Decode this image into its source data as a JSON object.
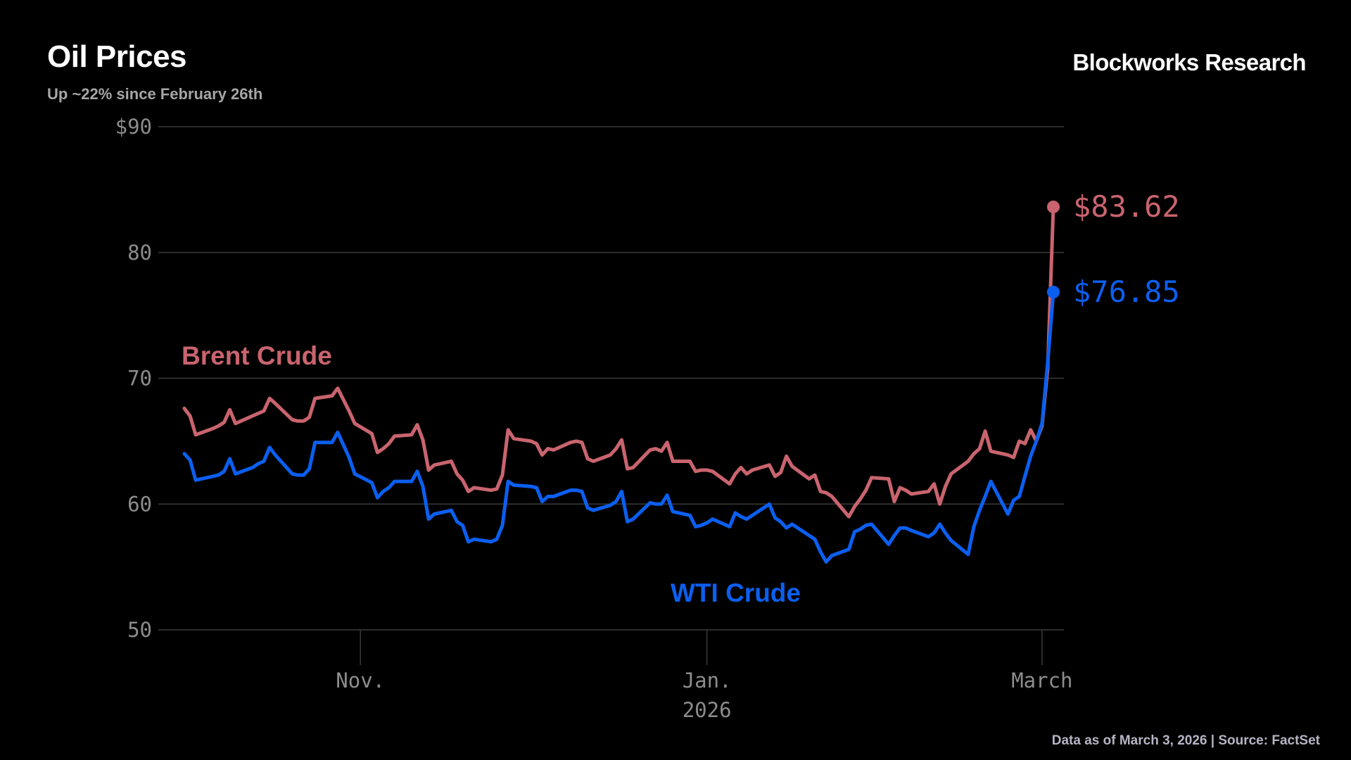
{
  "header": {
    "title": "Oil Prices",
    "subtitle": "Up ~22% since February 26th",
    "brand": "Blockworks Research"
  },
  "footer": {
    "note": "Data as of March 3, 2026 | Source:  FactSet"
  },
  "colors": {
    "background": "#000000",
    "brent": "#c9646e",
    "wti": "#0b5ff0",
    "grid": "#3a3a3a",
    "tick_text": "#8c8c8c"
  },
  "chart_data": {
    "type": "line",
    "title": "Oil Prices",
    "subtitle": "Up ~22% since February 26th",
    "ylim": [
      50,
      90
    ],
    "yticks": [
      {
        "value": 90,
        "label": "$90"
      },
      {
        "value": 80,
        "label": "80"
      },
      {
        "value": 70,
        "label": "70"
      },
      {
        "value": 60,
        "label": "60"
      },
      {
        "value": 50,
        "label": "50"
      }
    ],
    "xlim": [
      "2025-10-01",
      "2026-03-03"
    ],
    "xticks": [
      {
        "date": "2025-11-01",
        "label": "Nov."
      },
      {
        "date": "2026-01-01",
        "label": "Jan."
      },
      {
        "date": "2026-03-01",
        "label": "March"
      }
    ],
    "year_label": {
      "date": "2026-01-01",
      "label": "2026"
    },
    "grid": "horizontal",
    "series": [
      {
        "name": "Brent Crude",
        "end_label": "$83.62",
        "end_value": 83.62,
        "points": [
          [
            "2025-10-01",
            67.6
          ],
          [
            "2025-10-02",
            67.0
          ],
          [
            "2025-10-03",
            65.5
          ],
          [
            "2025-10-06",
            66.0
          ],
          [
            "2025-10-07",
            66.2
          ],
          [
            "2025-10-08",
            66.5
          ],
          [
            "2025-10-09",
            67.5
          ],
          [
            "2025-10-10",
            66.4
          ],
          [
            "2025-10-13",
            67.0
          ],
          [
            "2025-10-14",
            67.2
          ],
          [
            "2025-10-15",
            67.4
          ],
          [
            "2025-10-16",
            68.4
          ],
          [
            "2025-10-17",
            68.0
          ],
          [
            "2025-10-20",
            66.7
          ],
          [
            "2025-10-21",
            66.6
          ],
          [
            "2025-10-22",
            66.6
          ],
          [
            "2025-10-23",
            66.9
          ],
          [
            "2025-10-24",
            68.4
          ],
          [
            "2025-10-27",
            68.6
          ],
          [
            "2025-10-28",
            69.2
          ],
          [
            "2025-10-29",
            68.3
          ],
          [
            "2025-10-30",
            67.4
          ],
          [
            "2025-10-31",
            66.4
          ],
          [
            "2025-11-03",
            65.6
          ],
          [
            "2025-11-04",
            64.1
          ],
          [
            "2025-11-05",
            64.4
          ],
          [
            "2025-11-06",
            64.8
          ],
          [
            "2025-11-07",
            65.4
          ],
          [
            "2025-11-10",
            65.5
          ],
          [
            "2025-11-11",
            66.3
          ],
          [
            "2025-11-12",
            65.1
          ],
          [
            "2025-11-13",
            62.7
          ],
          [
            "2025-11-14",
            63.1
          ],
          [
            "2025-11-17",
            63.4
          ],
          [
            "2025-11-18",
            62.4
          ],
          [
            "2025-11-19",
            61.9
          ],
          [
            "2025-11-20",
            61.0
          ],
          [
            "2025-11-21",
            61.3
          ],
          [
            "2025-11-24",
            61.1
          ],
          [
            "2025-11-25",
            61.2
          ],
          [
            "2025-11-26",
            62.3
          ],
          [
            "2025-11-27",
            65.9
          ],
          [
            "2025-11-28",
            65.2
          ],
          [
            "2025-12-01",
            65.0
          ],
          [
            "2025-12-02",
            64.8
          ],
          [
            "2025-12-03",
            63.9
          ],
          [
            "2025-12-04",
            64.4
          ],
          [
            "2025-12-05",
            64.3
          ],
          [
            "2025-12-08",
            64.9
          ],
          [
            "2025-12-09",
            65.0
          ],
          [
            "2025-12-10",
            64.9
          ],
          [
            "2025-12-11",
            63.6
          ],
          [
            "2025-12-12",
            63.4
          ],
          [
            "2025-12-15",
            63.9
          ],
          [
            "2025-12-16",
            64.4
          ],
          [
            "2025-12-17",
            65.1
          ],
          [
            "2025-12-18",
            62.8
          ],
          [
            "2025-12-19",
            62.9
          ],
          [
            "2025-12-22",
            64.3
          ],
          [
            "2025-12-23",
            64.4
          ],
          [
            "2025-12-24",
            64.2
          ],
          [
            "2025-12-25",
            64.9
          ],
          [
            "2025-12-26",
            63.4
          ],
          [
            "2025-12-29",
            63.4
          ],
          [
            "2025-12-30",
            62.6
          ],
          [
            "2025-12-31",
            62.7
          ],
          [
            "2026-01-01",
            62.7
          ],
          [
            "2026-01-02",
            62.6
          ],
          [
            "2026-01-05",
            61.6
          ],
          [
            "2026-01-06",
            62.4
          ],
          [
            "2026-01-07",
            62.9
          ],
          [
            "2026-01-08",
            62.4
          ],
          [
            "2026-01-09",
            62.7
          ],
          [
            "2026-01-12",
            63.1
          ],
          [
            "2026-01-13",
            62.2
          ],
          [
            "2026-01-14",
            62.5
          ],
          [
            "2026-01-15",
            63.8
          ],
          [
            "2026-01-16",
            63.0
          ],
          [
            "2026-01-19",
            62.0
          ],
          [
            "2026-01-20",
            62.3
          ],
          [
            "2026-01-21",
            61.0
          ],
          [
            "2026-01-22",
            60.9
          ],
          [
            "2026-01-23",
            60.6
          ],
          [
            "2026-01-26",
            59.0
          ],
          [
            "2026-01-27",
            59.8
          ],
          [
            "2026-01-28",
            60.4
          ],
          [
            "2026-01-29",
            61.1
          ],
          [
            "2026-01-30",
            62.1
          ],
          [
            "2026-02-02",
            62.0
          ],
          [
            "2026-02-03",
            60.2
          ],
          [
            "2026-02-04",
            61.3
          ],
          [
            "2026-02-05",
            61.1
          ],
          [
            "2026-02-06",
            60.8
          ],
          [
            "2026-02-09",
            61.0
          ],
          [
            "2026-02-10",
            61.6
          ],
          [
            "2026-02-11",
            60.0
          ],
          [
            "2026-02-12",
            61.4
          ],
          [
            "2026-02-13",
            62.4
          ],
          [
            "2026-02-16",
            63.4
          ],
          [
            "2026-02-17",
            64.0
          ],
          [
            "2026-02-18",
            64.4
          ],
          [
            "2026-02-19",
            65.8
          ],
          [
            "2026-02-20",
            64.2
          ],
          [
            "2026-02-23",
            63.9
          ],
          [
            "2026-02-24",
            63.7
          ],
          [
            "2026-02-25",
            65.0
          ],
          [
            "2026-02-26",
            64.8
          ],
          [
            "2026-02-27",
            65.9
          ],
          [
            "2026-02-28",
            65.0
          ],
          [
            "2026-03-01",
            66.2
          ],
          [
            "2026-03-02",
            70.7
          ],
          [
            "2026-03-03",
            83.62
          ]
        ]
      },
      {
        "name": "WTI Crude",
        "end_label": "$76.85",
        "end_value": 76.85,
        "points": [
          [
            "2025-10-01",
            64.0
          ],
          [
            "2025-10-02",
            63.5
          ],
          [
            "2025-10-03",
            61.9
          ],
          [
            "2025-10-06",
            62.2
          ],
          [
            "2025-10-07",
            62.3
          ],
          [
            "2025-10-08",
            62.6
          ],
          [
            "2025-10-09",
            63.6
          ],
          [
            "2025-10-10",
            62.4
          ],
          [
            "2025-10-13",
            62.9
          ],
          [
            "2025-10-14",
            63.2
          ],
          [
            "2025-10-15",
            63.4
          ],
          [
            "2025-10-16",
            64.5
          ],
          [
            "2025-10-17",
            63.9
          ],
          [
            "2025-10-20",
            62.4
          ],
          [
            "2025-10-21",
            62.3
          ],
          [
            "2025-10-22",
            62.3
          ],
          [
            "2025-10-23",
            62.8
          ],
          [
            "2025-10-24",
            64.9
          ],
          [
            "2025-10-27",
            64.9
          ],
          [
            "2025-10-28",
            65.7
          ],
          [
            "2025-10-29",
            64.7
          ],
          [
            "2025-10-30",
            63.7
          ],
          [
            "2025-10-31",
            62.4
          ],
          [
            "2025-11-03",
            61.7
          ],
          [
            "2025-11-04",
            60.5
          ],
          [
            "2025-11-05",
            61.0
          ],
          [
            "2025-11-06",
            61.3
          ],
          [
            "2025-11-07",
            61.8
          ],
          [
            "2025-11-10",
            61.8
          ],
          [
            "2025-11-11",
            62.6
          ],
          [
            "2025-11-12",
            61.4
          ],
          [
            "2025-11-13",
            58.8
          ],
          [
            "2025-11-14",
            59.2
          ],
          [
            "2025-11-17",
            59.5
          ],
          [
            "2025-11-18",
            58.6
          ],
          [
            "2025-11-19",
            58.3
          ],
          [
            "2025-11-20",
            57.0
          ],
          [
            "2025-11-21",
            57.2
          ],
          [
            "2025-11-24",
            57.0
          ],
          [
            "2025-11-25",
            57.2
          ],
          [
            "2025-11-26",
            58.3
          ],
          [
            "2025-11-27",
            61.8
          ],
          [
            "2025-11-28",
            61.5
          ],
          [
            "2025-12-01",
            61.4
          ],
          [
            "2025-12-02",
            61.3
          ],
          [
            "2025-12-03",
            60.2
          ],
          [
            "2025-12-04",
            60.6
          ],
          [
            "2025-12-05",
            60.6
          ],
          [
            "2025-12-08",
            61.1
          ],
          [
            "2025-12-09",
            61.1
          ],
          [
            "2025-12-10",
            61.0
          ],
          [
            "2025-12-11",
            59.7
          ],
          [
            "2025-12-12",
            59.5
          ],
          [
            "2025-12-15",
            59.9
          ],
          [
            "2025-12-16",
            60.2
          ],
          [
            "2025-12-17",
            61.0
          ],
          [
            "2025-12-18",
            58.6
          ],
          [
            "2025-12-19",
            58.8
          ],
          [
            "2025-12-22",
            60.1
          ],
          [
            "2025-12-23",
            60.0
          ],
          [
            "2025-12-24",
            60.0
          ],
          [
            "2025-12-25",
            60.7
          ],
          [
            "2025-12-26",
            59.4
          ],
          [
            "2025-12-29",
            59.1
          ],
          [
            "2025-12-30",
            58.2
          ],
          [
            "2025-12-31",
            58.3
          ],
          [
            "2026-01-01",
            58.5
          ],
          [
            "2026-01-02",
            58.8
          ],
          [
            "2026-01-05",
            58.2
          ],
          [
            "2026-01-06",
            59.3
          ],
          [
            "2026-01-07",
            59.0
          ],
          [
            "2026-01-08",
            58.8
          ],
          [
            "2026-01-09",
            59.1
          ],
          [
            "2026-01-12",
            60.0
          ],
          [
            "2026-01-13",
            58.9
          ],
          [
            "2026-01-14",
            58.6
          ],
          [
            "2026-01-15",
            58.1
          ],
          [
            "2026-01-16",
            58.4
          ],
          [
            "2026-01-19",
            57.5
          ],
          [
            "2026-01-20",
            57.2
          ],
          [
            "2026-01-21",
            56.2
          ],
          [
            "2026-01-22",
            55.4
          ],
          [
            "2026-01-23",
            55.9
          ],
          [
            "2026-01-26",
            56.4
          ],
          [
            "2026-01-27",
            57.8
          ],
          [
            "2026-01-28",
            58.0
          ],
          [
            "2026-01-29",
            58.3
          ],
          [
            "2026-01-30",
            58.4
          ],
          [
            "2026-02-02",
            56.8
          ],
          [
            "2026-02-03",
            57.5
          ],
          [
            "2026-02-04",
            58.1
          ],
          [
            "2026-02-05",
            58.1
          ],
          [
            "2026-02-06",
            57.9
          ],
          [
            "2026-02-09",
            57.4
          ],
          [
            "2026-02-10",
            57.7
          ],
          [
            "2026-02-11",
            58.4
          ],
          [
            "2026-02-12",
            57.7
          ],
          [
            "2026-02-13",
            57.1
          ],
          [
            "2026-02-16",
            56.0
          ],
          [
            "2026-02-17",
            58.2
          ],
          [
            "2026-02-18",
            59.5
          ],
          [
            "2026-02-19",
            60.6
          ],
          [
            "2026-02-20",
            61.8
          ],
          [
            "2026-02-23",
            59.2
          ],
          [
            "2026-02-24",
            60.3
          ],
          [
            "2026-02-25",
            60.6
          ],
          [
            "2026-02-26",
            62.2
          ],
          [
            "2026-02-27",
            63.8
          ],
          [
            "2026-02-28",
            65.0
          ],
          [
            "2026-03-01",
            66.4
          ],
          [
            "2026-03-02",
            71.2
          ],
          [
            "2026-03-03",
            76.85
          ]
        ]
      }
    ]
  }
}
